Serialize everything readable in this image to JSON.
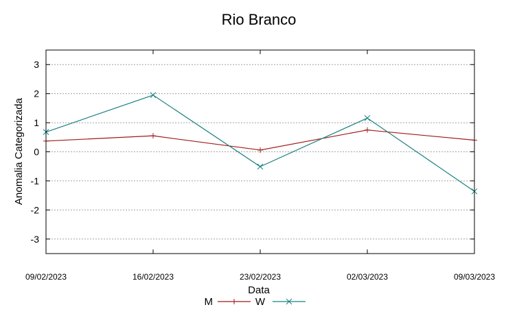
{
  "chart_data": {
    "type": "line",
    "title": "Rio Branco",
    "xlabel": "Data",
    "ylabel": "Anomalia Categorizada",
    "categories": [
      "09/02/2023",
      "16/02/2023",
      "23/02/2023",
      "02/03/2023",
      "09/03/2023"
    ],
    "ylim": [
      -3.5,
      3.5
    ],
    "yticks": [
      "3",
      "2",
      "1",
      "0",
      "-1",
      "-2",
      "-3"
    ],
    "grid": true,
    "legend_position": "bottom",
    "series": [
      {
        "name": "M",
        "color": "#a01818",
        "marker": "plus",
        "values": [
          0.37,
          0.55,
          0.06,
          0.75,
          0.4
        ]
      },
      {
        "name": "W",
        "color": "#1a8080",
        "marker": "cross",
        "values": [
          0.68,
          1.95,
          -0.51,
          1.16,
          -1.36
        ]
      }
    ]
  }
}
